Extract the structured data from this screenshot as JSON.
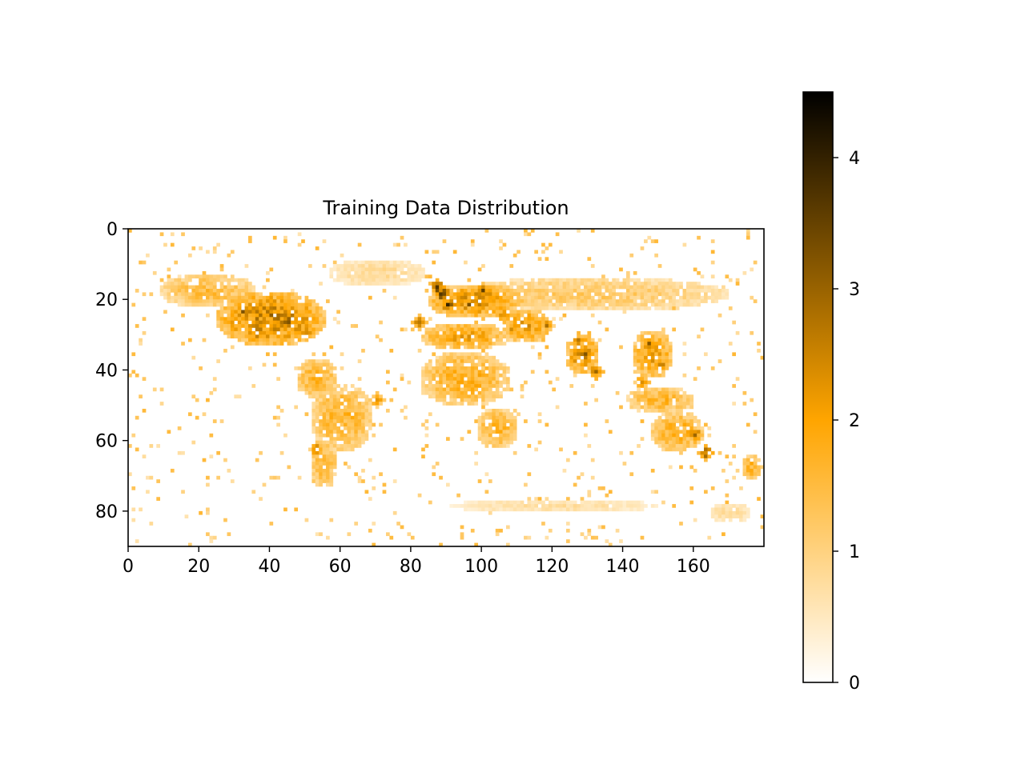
{
  "chart_data": {
    "type": "heatmap",
    "title": "Training Data Distribution",
    "xlabel": "",
    "ylabel": "",
    "grid_shape": [
      90,
      180
    ],
    "xlim": [
      0,
      180
    ],
    "ylim": [
      90,
      0
    ],
    "x_ticks": [
      0,
      20,
      40,
      60,
      80,
      100,
      120,
      140,
      160
    ],
    "y_ticks": [
      0,
      20,
      40,
      60,
      80
    ],
    "colorbar": {
      "vmin": 0,
      "vmax": 4.5,
      "ticks": [
        0,
        1,
        2,
        3,
        4
      ],
      "colors": [
        "#ffffff",
        "#ffa500",
        "#000000"
      ]
    },
    "hotspots": [
      {
        "x": 89,
        "y": 18,
        "value": 4.4
      },
      {
        "x": 87,
        "y": 16,
        "value": 4.0
      },
      {
        "x": 90,
        "y": 21,
        "value": 3.8
      },
      {
        "x": 45,
        "y": 26,
        "value": 3.6
      },
      {
        "x": 40,
        "y": 24,
        "value": 3.3
      },
      {
        "x": 32,
        "y": 23,
        "value": 3.3
      },
      {
        "x": 50,
        "y": 28,
        "value": 3.2
      },
      {
        "x": 36,
        "y": 29,
        "value": 3.0
      },
      {
        "x": 100,
        "y": 17,
        "value": 3.1
      },
      {
        "x": 96,
        "y": 21,
        "value": 3.0
      },
      {
        "x": 106,
        "y": 24,
        "value": 3.0
      },
      {
        "x": 129,
        "y": 35,
        "value": 3.2
      },
      {
        "x": 132,
        "y": 40,
        "value": 3.0
      },
      {
        "x": 127,
        "y": 31,
        "value": 2.9
      },
      {
        "x": 150,
        "y": 38,
        "value": 3.2
      },
      {
        "x": 147,
        "y": 32,
        "value": 2.9
      },
      {
        "x": 160,
        "y": 58,
        "value": 3.2
      },
      {
        "x": 163,
        "y": 63,
        "value": 3.4
      },
      {
        "x": 82,
        "y": 26,
        "value": 3.0
      },
      {
        "x": 92,
        "y": 31,
        "value": 2.8
      },
      {
        "x": 53,
        "y": 62,
        "value": 3.0
      },
      {
        "x": 118,
        "y": 27,
        "value": 2.8
      },
      {
        "x": 145,
        "y": 43,
        "value": 2.7
      },
      {
        "x": 108,
        "y": 28,
        "value": 2.6
      },
      {
        "x": 70,
        "y": 48,
        "value": 2.5
      }
    ]
  }
}
